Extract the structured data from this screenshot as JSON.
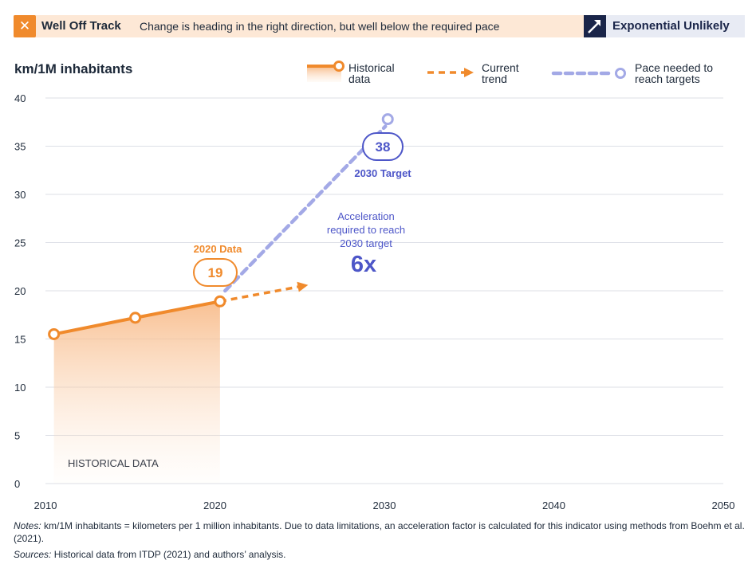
{
  "status": {
    "label": "Well Off Track",
    "description": "Change is heading in the right direction, but well below the required pace",
    "likelihood": "Exponential Unlikely"
  },
  "legend": {
    "historical": [
      "Historical",
      "data"
    ],
    "current": [
      "Current",
      "trend"
    ],
    "pace": [
      "Pace needed to",
      "reach targets"
    ]
  },
  "annotations": {
    "data_2020_label": "2020 Data",
    "data_2020_value": "19",
    "target_value": "38",
    "target_label": "2030 Target",
    "acceleration_lines": [
      "Acceleration",
      "required to reach",
      "2030 target"
    ],
    "acceleration_factor": "6x",
    "historical_region": "HISTORICAL DATA"
  },
  "footer": {
    "notes_label": "Notes:",
    "notes_text": "km/1M inhabitants = kilometers per 1 million inhabitants. Due to data limitations, an acceleration factor is calculated for this indicator using methods from Boehm et al. (2021).",
    "sources_label": "Sources:",
    "sources_text": "Historical data from ITDP (2021) and authors’ analysis."
  },
  "colors": {
    "historical": "#f08a2c",
    "pace": "#a3a9e6",
    "target": "#4d56c8",
    "navy": "#1a2549"
  },
  "chart_data": {
    "type": "line",
    "ylabel": "km/1M inhabitants",
    "xlim": [
      2010,
      2050
    ],
    "ylim": [
      0,
      40
    ],
    "x_ticks": [
      2010,
      2020,
      2030,
      2040,
      2050
    ],
    "y_ticks": [
      0,
      5,
      10,
      15,
      20,
      25,
      30,
      35,
      40
    ],
    "grid": true,
    "series": [
      {
        "name": "Historical data",
        "x": [
          2010.5,
          2015.3,
          2020.3
        ],
        "y": [
          15.5,
          17.2,
          18.9
        ]
      },
      {
        "name": "Current trend",
        "x": [
          2020.3,
          2025.5
        ],
        "y": [
          18.9,
          20.6
        ]
      },
      {
        "name": "Pace needed to reach targets",
        "x": [
          2020.6,
          2030.2
        ],
        "y": [
          20.0,
          37.8
        ]
      }
    ]
  }
}
